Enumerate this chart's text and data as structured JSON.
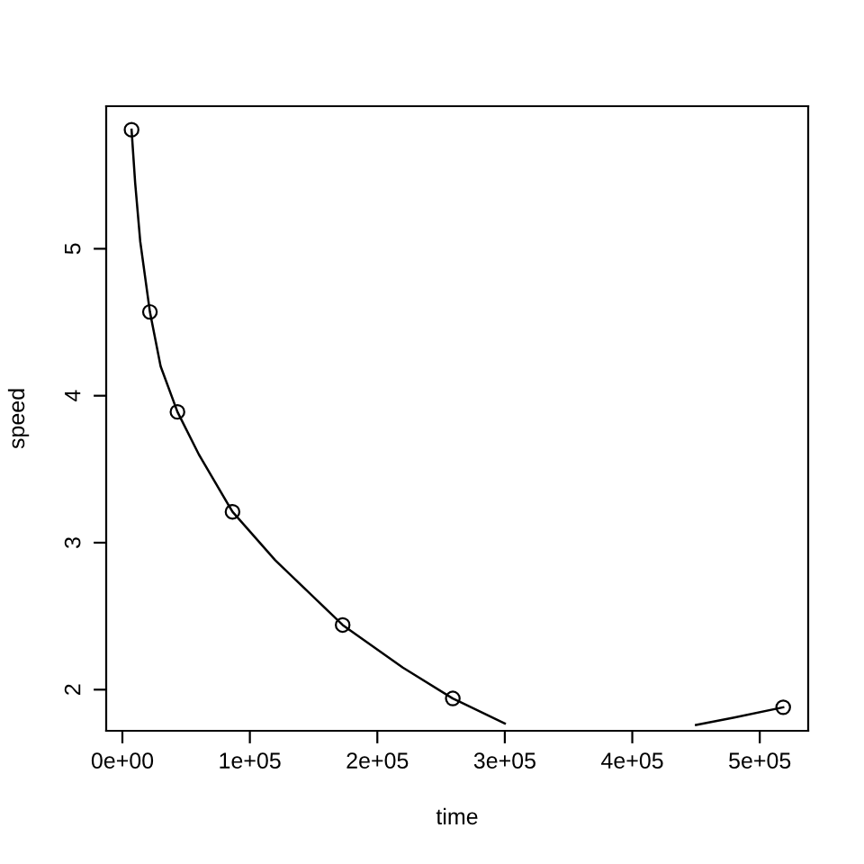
{
  "chart_data": {
    "type": "scatter",
    "xlabel": "time",
    "ylabel": "speed",
    "xlim": [
      -12700,
      538000
    ],
    "ylim": [
      1.72,
      5.97
    ],
    "xticks": [
      {
        "value": 0,
        "label": "0e+00"
      },
      {
        "value": 100000,
        "label": "1e+05"
      },
      {
        "value": 200000,
        "label": "2e+05"
      },
      {
        "value": 300000,
        "label": "3e+05"
      },
      {
        "value": 400000,
        "label": "4e+05"
      },
      {
        "value": 500000,
        "label": "5e+05"
      }
    ],
    "yticks": [
      2,
      3,
      4,
      5
    ],
    "grid": false,
    "legend": false,
    "series": [
      {
        "color": "#000000",
        "marker": "circle",
        "x": [
          7200,
          21600,
          43200,
          86400,
          172800,
          259200,
          518400
        ],
        "values": [
          5.81,
          4.57,
          3.89,
          3.21,
          2.44,
          1.94,
          1.88
        ]
      },
      {
        "type": "line",
        "color": "#000000",
        "marker": "none",
        "line_style": "solid",
        "x": [
          7200,
          10000,
          14000,
          21600,
          30000,
          43200,
          60000,
          86400,
          120000,
          172800,
          220000,
          259200,
          300000,
          332000,
          380000,
          422000,
          450000,
          480000,
          518400
        ],
        "values": [
          5.81,
          5.45,
          5.05,
          4.57,
          4.2,
          3.89,
          3.6,
          3.21,
          2.88,
          2.44,
          2.15,
          1.94,
          1.77,
          null,
          null,
          null,
          1.76,
          1.81,
          1.88
        ]
      }
    ]
  }
}
